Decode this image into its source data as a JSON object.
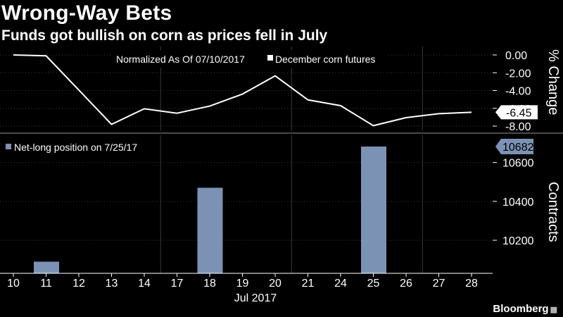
{
  "title": "Wrong-Way Bets",
  "subtitle": "Funds got bullish on corn as prices fell in July",
  "source": "Bloomberg",
  "colors": {
    "background": "#000000",
    "line": "#ffffff",
    "bar": "#7b92b4",
    "grid": "#3a3a3a"
  },
  "chart_data": [
    {
      "type": "line",
      "legend_header": "Normalized As Of 07/10/2017",
      "legend_placement": "top",
      "x": [
        "10",
        "11",
        "12",
        "13",
        "14",
        "17",
        "18",
        "19",
        "20",
        "21",
        "24",
        "25",
        "26",
        "27",
        "28"
      ],
      "series": [
        {
          "name": "December corn futures",
          "values": [
            0.0,
            -0.1,
            -3.95,
            -7.8,
            -6.05,
            -6.55,
            -5.75,
            -4.4,
            -2.35,
            -5.05,
            -5.7,
            -7.95,
            -7.05,
            -6.6,
            -6.45
          ]
        }
      ],
      "last_value_label": "-6.45",
      "ylabel": "% Change",
      "yticks": [
        "0.00",
        "-2.00",
        "-4.00",
        "-6.00",
        "-8.00"
      ],
      "ylim": [
        -8.0,
        0.0
      ],
      "grid": true
    },
    {
      "type": "bar",
      "legend_placement": "top-left",
      "categories": [
        "10",
        "11",
        "12",
        "13",
        "14",
        "17",
        "18",
        "19",
        "20",
        "21",
        "24",
        "25",
        "26",
        "27",
        "28"
      ],
      "series": [
        {
          "name": "Net-long position on 7/25/17",
          "values": [
            null,
            10090,
            null,
            null,
            null,
            null,
            10470,
            null,
            null,
            null,
            null,
            10682,
            null,
            null,
            null
          ]
        }
      ],
      "last_value_label": "10682",
      "ylabel": "Contracts",
      "yticks": [
        "10200",
        "10400",
        "10600"
      ],
      "ylim": [
        10030,
        10740
      ],
      "grid": true,
      "xlabel": "Jul 2017"
    }
  ]
}
